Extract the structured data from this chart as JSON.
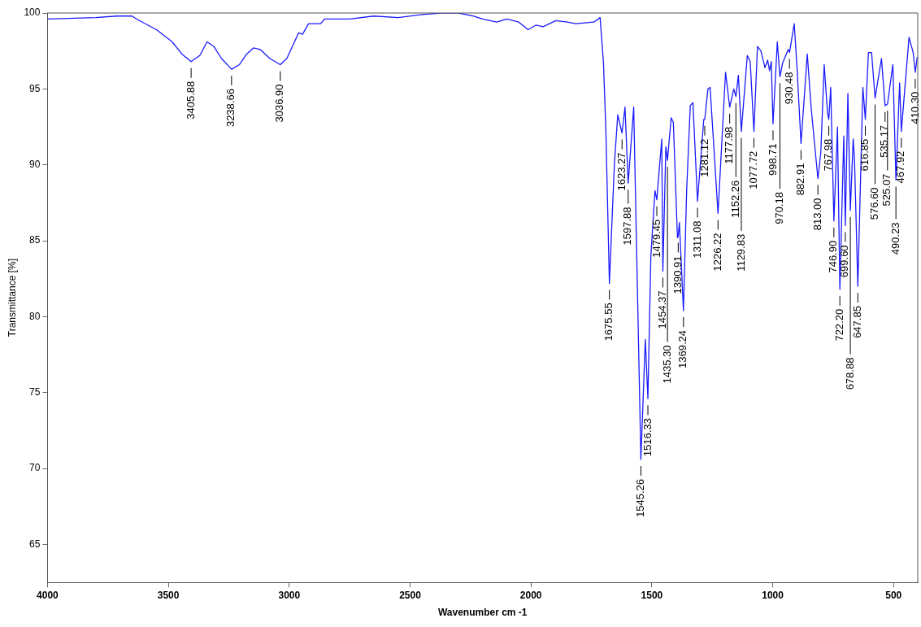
{
  "chart_data": {
    "type": "line",
    "xlabel": "Wavenumber cm -1",
    "ylabel": "Transmittance [%]",
    "xlim": [
      4000,
      400
    ],
    "ylim": [
      62.5,
      100
    ],
    "xticks": [
      4000,
      3500,
      3000,
      2500,
      2000,
      1500,
      1000,
      500
    ],
    "yticks": [
      65,
      70,
      75,
      80,
      85,
      90,
      95,
      100
    ],
    "grid": false,
    "series": [
      {
        "color": "#1a1aff",
        "x": [
          4000,
          3800,
          3714,
          3650,
          3631,
          3549,
          3484,
          3444,
          3405.88,
          3370,
          3340,
          3312,
          3280,
          3238.66,
          3206,
          3176,
          3148,
          3120,
          3080,
          3036.9,
          3010,
          2961,
          2945,
          2920,
          2870,
          2854,
          2750,
          2650,
          2550,
          2450,
          2373,
          2300,
          2240,
          2200,
          2142,
          2100,
          2050,
          2012,
          1980,
          1950,
          1897,
          1850,
          1815,
          1740,
          1714,
          1700,
          1690,
          1675.55,
          1655,
          1641,
          1623.27,
          1611,
          1597.88,
          1575,
          1545.26,
          1527,
          1516.33,
          1504,
          1487,
          1479.45,
          1459,
          1454.37,
          1442,
          1435.3,
          1420,
          1411,
          1394,
          1390.91,
          1386,
          1369.24,
          1356,
          1341,
          1330,
          1311.08,
          1285,
          1281.12,
          1268,
          1259,
          1226.22,
          1195,
          1177.98,
          1161,
          1152.26,
          1142,
          1129.83,
          1105,
          1093,
          1077.72,
          1063,
          1049,
          1032,
          1021,
          1013,
          1006,
          998.71,
          981,
          970.18,
          959,
          936,
          930.48,
          911,
          899,
          882.91,
          857,
          840,
          813,
          801,
          787,
          773,
          767.98,
          760,
          746.9,
          732,
          722.2,
          706,
          699.6,
          689,
          678.88,
          667,
          661.5,
          647.85,
          627,
          616.85,
          604,
          591,
          576.6,
          550,
          535.17,
          525.07,
          503,
          490.23,
          475,
          467.92,
          436,
          419,
          410.3,
          402
        ],
        "values": [
          99.6,
          99.7,
          99.8,
          99.8,
          99.6,
          98.9,
          98.1,
          97.3,
          96.8,
          97.2,
          98.1,
          97.8,
          97.0,
          96.3,
          96.6,
          97.3,
          97.7,
          97.6,
          97.0,
          96.6,
          97.0,
          98.7,
          98.6,
          99.3,
          99.3,
          99.6,
          99.6,
          99.8,
          99.7,
          99.9,
          100,
          100,
          99.8,
          99.6,
          99.4,
          99.6,
          99.4,
          98.9,
          99.2,
          99.1,
          99.5,
          99.4,
          99.3,
          99.4,
          99.7,
          96.7,
          92.2,
          82.2,
          90.0,
          93.3,
          92.1,
          93.8,
          88.8,
          93.8,
          70.6,
          78.5,
          74.6,
          84.0,
          88.3,
          87.7,
          91.7,
          83.0,
          91.2,
          90.3,
          93.1,
          92.8,
          85.2,
          85.3,
          86.2,
          80.4,
          88.3,
          93.9,
          94.1,
          87.6,
          93.0,
          93.0,
          95.0,
          95.1,
          86.8,
          96.1,
          93.8,
          95.0,
          94.5,
          95.9,
          92.2,
          97.2,
          96.8,
          92.2,
          97.8,
          97.5,
          96.4,
          96.9,
          96.2,
          96.8,
          92.7,
          98.1,
          95.8,
          96.7,
          97.6,
          97.4,
          99.3,
          96.3,
          91.4,
          97.3,
          93.6,
          89.1,
          90.8,
          96.6,
          93.4,
          93.0,
          95.1,
          86.3,
          92.5,
          81.8,
          91.9,
          86.0,
          94.7,
          87.0,
          91.7,
          90.3,
          82.0,
          95.1,
          93.0,
          97.4,
          97.4,
          94.4,
          97.0,
          93.9,
          94.0,
          96.6,
          89.0,
          95.4,
          92.2,
          98.4,
          97.4,
          96.1,
          97.1
        ]
      }
    ],
    "annotations": [
      {
        "text": "3405.88",
        "x": 3405.88,
        "y": 96.8
      },
      {
        "text": "3238.66",
        "x": 3238.66,
        "y": 96.3
      },
      {
        "text": "3036.90",
        "x": 3036.9,
        "y": 96.6
      },
      {
        "text": "1675.55",
        "x": 1675.55,
        "y": 82.2
      },
      {
        "text": "1623.27",
        "x": 1623.27,
        "y": 92.1
      },
      {
        "text": "1597.88",
        "x": 1597.88,
        "y": 88.8
      },
      {
        "text": "1545.26",
        "x": 1545.26,
        "y": 70.6
      },
      {
        "text": "1516.33",
        "x": 1516.33,
        "y": 74.6
      },
      {
        "text": "1479.45",
        "x": 1479.45,
        "y": 87.7
      },
      {
        "text": "1454.37",
        "x": 1454.37,
        "y": 83.0
      },
      {
        "text": "1435.30",
        "x": 1435.3,
        "y": 90.3
      },
      {
        "text": "1390.91",
        "x": 1390.91,
        "y": 85.3
      },
      {
        "text": "1369.24",
        "x": 1369.24,
        "y": 80.4
      },
      {
        "text": "1311.08",
        "x": 1311.08,
        "y": 87.6
      },
      {
        "text": "1281.12",
        "x": 1281.12,
        "y": 93.0
      },
      {
        "text": "1226.22",
        "x": 1226.22,
        "y": 86.8
      },
      {
        "text": "1177.98",
        "x": 1177.98,
        "y": 93.8
      },
      {
        "text": "1152.26",
        "x": 1152.26,
        "y": 94.5
      },
      {
        "text": "1129.83",
        "x": 1129.83,
        "y": 92.2
      },
      {
        "text": "1077.72",
        "x": 1077.72,
        "y": 92.2
      },
      {
        "text": "998.71",
        "x": 998.71,
        "y": 92.7
      },
      {
        "text": "970.18",
        "x": 970.18,
        "y": 95.8
      },
      {
        "text": "930.48",
        "x": 930.48,
        "y": 97.4
      },
      {
        "text": "882.91",
        "x": 882.91,
        "y": 91.4
      },
      {
        "text": "813.00",
        "x": 813,
        "y": 89.1
      },
      {
        "text": "767.98",
        "x": 767.98,
        "y": 93.0
      },
      {
        "text": "746.90",
        "x": 746.9,
        "y": 86.3
      },
      {
        "text": "722.20",
        "x": 722.2,
        "y": 81.8
      },
      {
        "text": "699.60",
        "x": 699.6,
        "y": 86.0
      },
      {
        "text": "678.88",
        "x": 678.88,
        "y": 87.0
      },
      {
        "text": "647.85",
        "x": 647.85,
        "y": 82.0
      },
      {
        "text": "616.85",
        "x": 616.85,
        "y": 93.0
      },
      {
        "text": "576.60",
        "x": 576.6,
        "y": 94.4
      },
      {
        "text": "535.17",
        "x": 535.17,
        "y": 93.9
      },
      {
        "text": "525.07",
        "x": 525.07,
        "y": 94.0
      },
      {
        "text": "490.23",
        "x": 490.23,
        "y": 89.0
      },
      {
        "text": "467.92",
        "x": 467.92,
        "y": 92.2
      },
      {
        "text": "410.30",
        "x": 410.3,
        "y": 96.1
      }
    ]
  }
}
